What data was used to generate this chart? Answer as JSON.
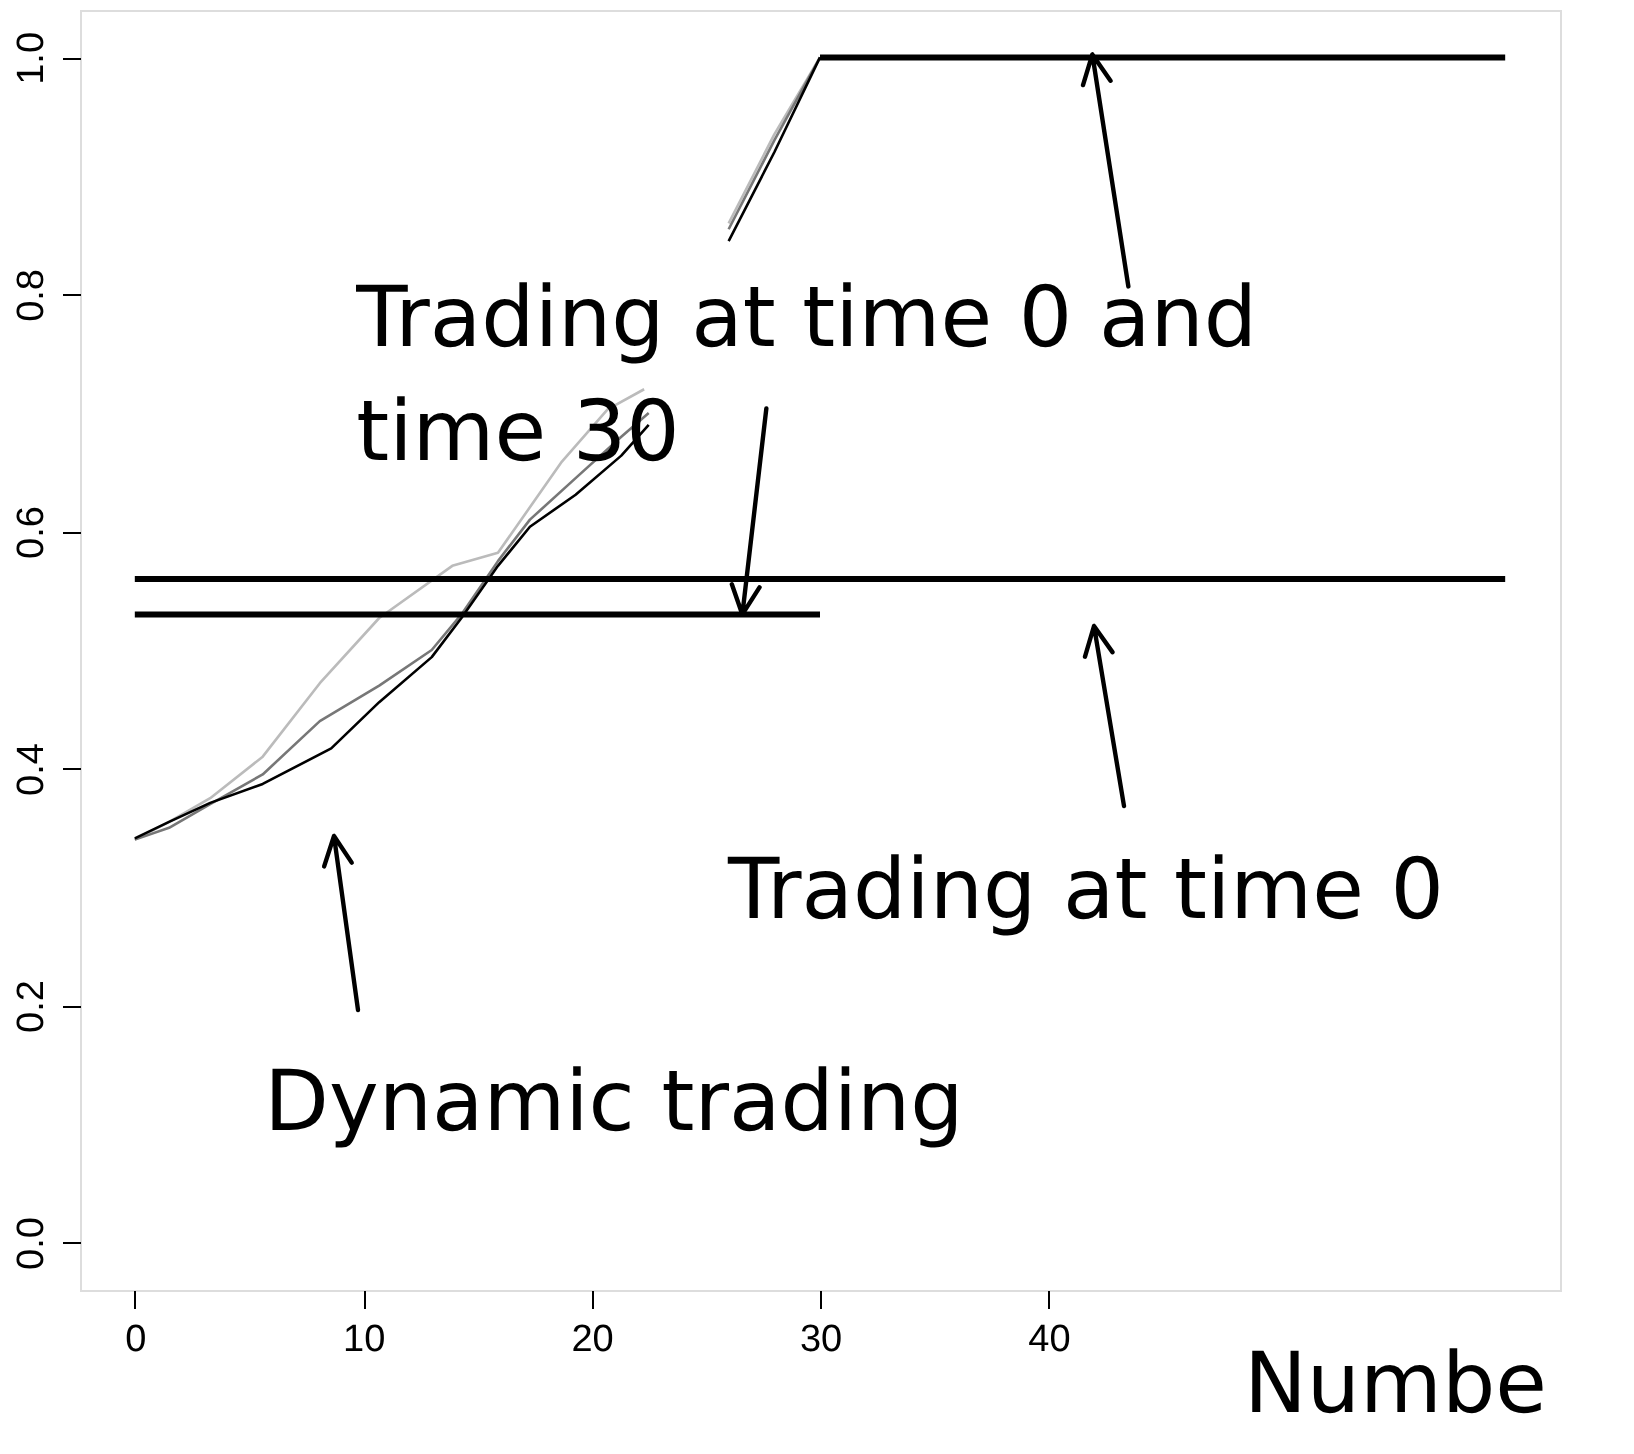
{
  "chart_data": {
    "type": "line",
    "xlim": [
      -2.4,
      62.4
    ],
    "ylim": [
      -0.04,
      1.04
    ],
    "xticks": [
      0,
      10,
      20,
      30,
      40
    ],
    "yticks": [
      {
        "value": 0,
        "label": "0.0"
      },
      {
        "value": 0.2,
        "label": "0.2"
      },
      {
        "value": 0.4,
        "label": "0.4"
      },
      {
        "value": 0.6,
        "label": "0.6"
      },
      {
        "value": 0.8,
        "label": "0.8"
      },
      {
        "value": 1,
        "label": "1.0"
      }
    ],
    "series": [
      {
        "color": "#bbbbbb",
        "x": [
          0,
          1.5,
          3.3,
          5.6,
          8.1,
          10.7,
          13.9,
          15.9,
          18.7,
          20.7,
          22.3,
          24,
          26,
          28,
          30
        ],
        "values": [
          0.34,
          0.355,
          0.375,
          0.41,
          0.472,
          0.527,
          0.571,
          0.582,
          0.659,
          0.703,
          0.72,
          null,
          0.86,
          0.935,
          1.0
        ]
      },
      {
        "color": "#777777",
        "x": [
          0,
          1.5,
          3.3,
          5.6,
          8.1,
          10.7,
          13,
          14.3,
          15.9,
          17.3,
          19.3,
          21.3,
          22.5,
          24,
          26,
          28,
          30
        ],
        "values": [
          0.34,
          0.35,
          0.37,
          0.395,
          0.44,
          0.47,
          0.5,
          0.53,
          0.575,
          0.61,
          0.645,
          0.68,
          0.7,
          null,
          0.855,
          0.93,
          1.0
        ]
      },
      {
        "color": "#000000",
        "x": [
          0,
          1.5,
          3.3,
          5.6,
          8.6,
          10.7,
          13,
          14.3,
          15.9,
          17.3,
          19.3,
          21.3,
          22.5,
          24,
          26,
          28,
          30
        ],
        "values": [
          0.341,
          0.355,
          0.371,
          0.387,
          0.417,
          0.456,
          0.494,
          0.527,
          0.571,
          0.604,
          0.631,
          0.664,
          0.69,
          null,
          0.845,
          0.92,
          1.0
        ]
      },
      {
        "color": "#000000",
        "x": [
          0,
          60
        ],
        "values": [
          0.56,
          0.56
        ]
      },
      {
        "color": "#000000",
        "x": [
          0,
          30
        ],
        "values": [
          0.53,
          0.53
        ]
      },
      {
        "color": "#000000",
        "x": [
          30,
          60
        ],
        "values": [
          1.0,
          1.0
        ]
      }
    ],
    "annotations": [
      {
        "text": "Trading at time 0 and\ntime 30",
        "x": 26.6,
        "y": 0.53
      },
      "Trading at time 0",
      "Dynamic trading",
      "Numbe"
    ]
  }
}
